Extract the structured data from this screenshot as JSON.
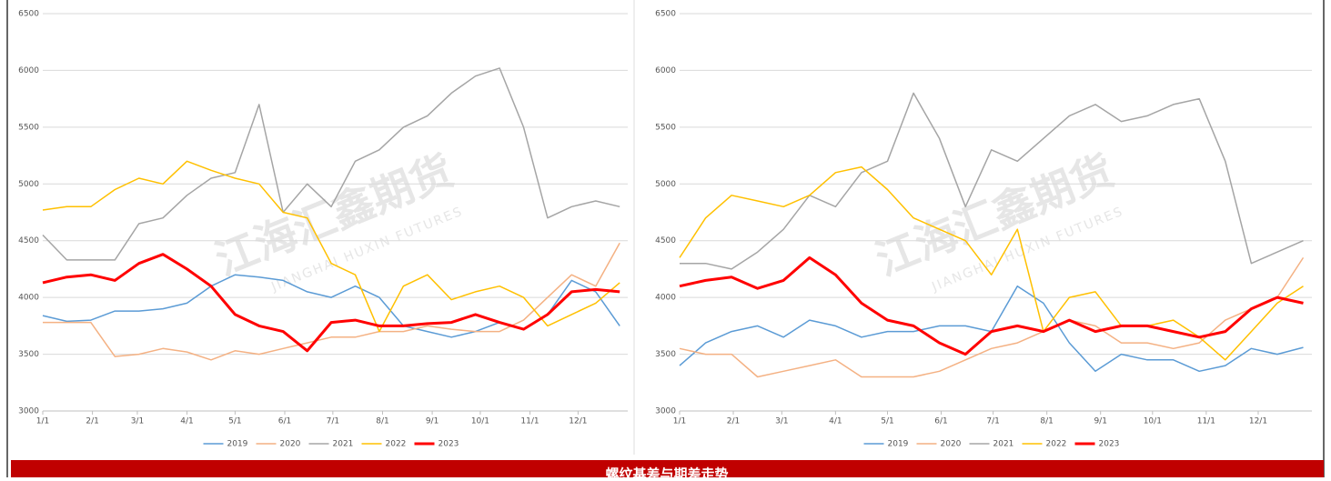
{
  "chart_data": [
    {
      "type": "line",
      "x": [
        0,
        15,
        30,
        45,
        60,
        75,
        90,
        105,
        120,
        135,
        150,
        165,
        180,
        195,
        210,
        225,
        240,
        255,
        270,
        285,
        300,
        315,
        330,
        345,
        360
      ],
      "xlim": [
        0,
        365
      ],
      "xticks": [
        {
          "value": 0,
          "label": "1/1"
        },
        {
          "value": 31,
          "label": "2/1"
        },
        {
          "value": 59,
          "label": "3/1"
        },
        {
          "value": 90,
          "label": "4/1"
        },
        {
          "value": 120,
          "label": "5/1"
        },
        {
          "value": 151,
          "label": "6/1"
        },
        {
          "value": 181,
          "label": "7/1"
        },
        {
          "value": 212,
          "label": "8/1"
        },
        {
          "value": 243,
          "label": "9/1"
        },
        {
          "value": 273,
          "label": "10/1"
        },
        {
          "value": 304,
          "label": "11/1"
        },
        {
          "value": 334,
          "label": "12/1"
        }
      ],
      "ylim": [
        3000,
        6500
      ],
      "yticks": [
        3000,
        3500,
        4000,
        4500,
        5000,
        5500,
        6000,
        6500
      ],
      "grid": true,
      "series": [
        {
          "name": "2019",
          "color": "#5b9bd5",
          "width": 1.5,
          "values": [
            3840,
            3790,
            3800,
            3880,
            3880,
            3900,
            3950,
            4100,
            4200,
            4180,
            4150,
            4050,
            4000,
            4100,
            4000,
            3750,
            3700,
            3650,
            3700,
            3780,
            3720,
            3850,
            4150,
            4050,
            3750
          ]
        },
        {
          "name": "2020",
          "color": "#f4b183",
          "width": 1.5,
          "values": [
            3780,
            3780,
            3780,
            3480,
            3500,
            3550,
            3520,
            3450,
            3530,
            3500,
            3550,
            3600,
            3650,
            3650,
            3700,
            3700,
            3750,
            3720,
            3700,
            3700,
            3800,
            4000,
            4200,
            4100,
            4480
          ]
        },
        {
          "name": "2021",
          "color": "#a5a5a5",
          "width": 1.5,
          "values": [
            4550,
            4330,
            4330,
            4330,
            4650,
            4700,
            4900,
            5050,
            5100,
            5700,
            4750,
            5000,
            4800,
            5200,
            5300,
            5500,
            5600,
            5800,
            5950,
            6020,
            5500,
            4700,
            4800,
            4850,
            4800
          ]
        },
        {
          "name": "2022",
          "color": "#ffc000",
          "width": 1.5,
          "values": [
            4770,
            4800,
            4800,
            4950,
            5050,
            5000,
            5200,
            5120,
            5050,
            5000,
            4750,
            4700,
            4300,
            4200,
            3700,
            4100,
            4200,
            3980,
            4050,
            4100,
            4000,
            3750,
            3850,
            3950,
            4130
          ]
        },
        {
          "name": "2023",
          "color": "#ff0000",
          "width": 3,
          "values": [
            4130,
            4180,
            4200,
            4150,
            4300,
            4380,
            4250,
            4100,
            3850,
            3750,
            3700,
            3530,
            3780,
            3800,
            3750,
            3750,
            3770,
            3780,
            3850,
            3780,
            3720,
            3850,
            4050,
            4070,
            4050
          ]
        }
      ]
    },
    {
      "type": "line",
      "x": [
        0,
        15,
        30,
        45,
        60,
        75,
        90,
        105,
        120,
        135,
        150,
        165,
        180,
        195,
        210,
        225,
        240,
        255,
        270,
        285,
        300,
        315,
        330,
        345,
        360
      ],
      "xlim": [
        0,
        365
      ],
      "xticks": [
        {
          "value": 0,
          "label": "1/1"
        },
        {
          "value": 31,
          "label": "2/1"
        },
        {
          "value": 59,
          "label": "3/1"
        },
        {
          "value": 90,
          "label": "4/1"
        },
        {
          "value": 120,
          "label": "5/1"
        },
        {
          "value": 151,
          "label": "6/1"
        },
        {
          "value": 181,
          "label": "7/1"
        },
        {
          "value": 212,
          "label": "8/1"
        },
        {
          "value": 243,
          "label": "9/1"
        },
        {
          "value": 273,
          "label": "10/1"
        },
        {
          "value": 304,
          "label": "11/1"
        },
        {
          "value": 334,
          "label": "12/1"
        }
      ],
      "ylim": [
        3000,
        6500
      ],
      "yticks": [
        3000,
        3500,
        4000,
        4500,
        5000,
        5500,
        6000,
        6500
      ],
      "grid": true,
      "series": [
        {
          "name": "2019",
          "color": "#5b9bd5",
          "width": 1.5,
          "values": [
            3400,
            3600,
            3700,
            3750,
            3650,
            3800,
            3750,
            3650,
            3700,
            3700,
            3750,
            3750,
            3700,
            4100,
            3950,
            3600,
            3350,
            3500,
            3450,
            3450,
            3350,
            3400,
            3550,
            3500,
            3560
          ]
        },
        {
          "name": "2020",
          "color": "#f4b183",
          "width": 1.5,
          "values": [
            3550,
            3500,
            3500,
            3300,
            3350,
            3400,
            3450,
            3300,
            3300,
            3300,
            3350,
            3450,
            3550,
            3600,
            3700,
            3800,
            3750,
            3600,
            3600,
            3550,
            3600,
            3800,
            3900,
            4000,
            4350
          ]
        },
        {
          "name": "2021",
          "color": "#a5a5a5",
          "width": 1.5,
          "values": [
            4300,
            4300,
            4250,
            4400,
            4600,
            4900,
            4800,
            5100,
            5200,
            5800,
            5400,
            4800,
            5300,
            5200,
            5400,
            5600,
            5700,
            5550,
            5600,
            5700,
            5750,
            5200,
            4300,
            4400,
            4500
          ]
        },
        {
          "name": "2022",
          "color": "#ffc000",
          "width": 1.5,
          "values": [
            4350,
            4700,
            4900,
            4850,
            4800,
            4900,
            5100,
            5150,
            4950,
            4700,
            4600,
            4500,
            4200,
            4600,
            3700,
            4000,
            4050,
            3750,
            3750,
            3800,
            3650,
            3450,
            3700,
            3950,
            4100
          ]
        },
        {
          "name": "2023",
          "color": "#ff0000",
          "width": 3,
          "values": [
            4100,
            4150,
            4180,
            4080,
            4150,
            4350,
            4200,
            3950,
            3800,
            3750,
            3600,
            3500,
            3700,
            3750,
            3700,
            3800,
            3700,
            3750,
            3750,
            3700,
            3650,
            3700,
            3900,
            4000,
            3950
          ]
        }
      ]
    }
  ],
  "watermark": {
    "cn": "江海汇鑫期货",
    "en": "JIANGHAI HUXIN FUTURES"
  },
  "banner": {
    "title": "螺纹基差与期差走势"
  }
}
